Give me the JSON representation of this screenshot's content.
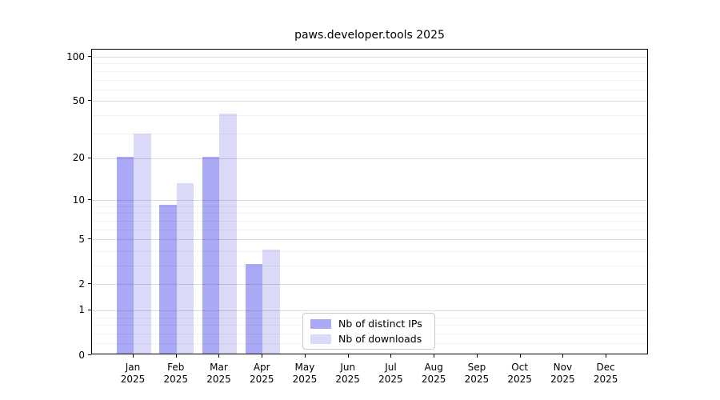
{
  "title": "paws.developer.tools 2025",
  "chart_data": {
    "type": "bar",
    "title": "paws.developer.tools 2025",
    "categories": [
      "Jan",
      "Feb",
      "Mar",
      "Apr",
      "May",
      "Jun",
      "Jul",
      "Aug",
      "Sep",
      "Oct",
      "Nov",
      "Dec"
    ],
    "year_label": "2025",
    "series": [
      {
        "name": "Nb of distinct IPs",
        "color": "#a9a9f5",
        "values": [
          20,
          9,
          20,
          3,
          0,
          0,
          0,
          0,
          0,
          0,
          0,
          0
        ]
      },
      {
        "name": "Nb of downloads",
        "color": "#dadaf8",
        "values": [
          29,
          13,
          40,
          4,
          0,
          0,
          0,
          0,
          0,
          0,
          0,
          0
        ]
      }
    ],
    "xlabel": "",
    "ylabel": "",
    "yscale": "log1p",
    "ylim": [
      0,
      112
    ],
    "y_major_ticks": [
      0,
      1,
      2,
      5,
      10,
      20,
      50,
      100
    ],
    "y_minor_ticks": [
      0.2,
      0.4,
      0.6,
      0.8,
      3,
      4,
      6,
      7,
      8,
      9,
      30,
      40,
      60,
      70,
      80,
      90
    ],
    "grid": "horizontal, drawn above bars",
    "legend_position": "lower center"
  },
  "legend": {
    "items": [
      {
        "label": "Nb of distinct IPs",
        "color": "#a9a9f5"
      },
      {
        "label": "Nb of downloads",
        "color": "#dadaf8"
      }
    ]
  },
  "colors": {
    "background": "#ffffff",
    "frame": "#000000",
    "major_grid": "#dddddd",
    "minor_grid": "#f2f2f2",
    "text": "#000000",
    "bar_distinct_ips": "#a9a9f5",
    "bar_downloads": "#dadaf8"
  }
}
